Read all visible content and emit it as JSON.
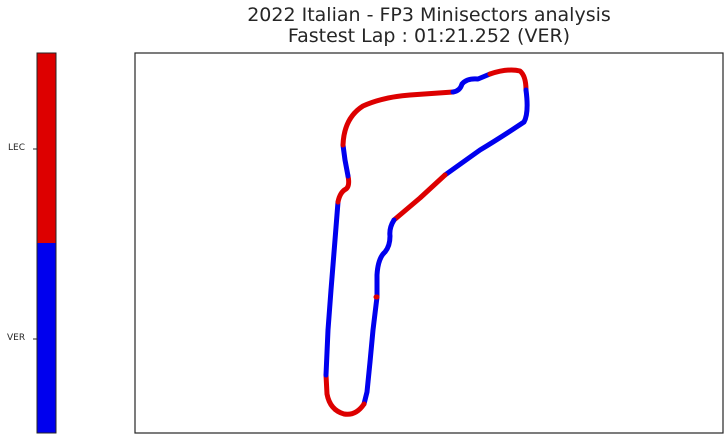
{
  "chart_data": {
    "type": "line",
    "title_line1": "2022 Italian - FP3 Minisectors analysis",
    "title_line2": "Fastest Lap : 01:21.252 (VER)",
    "xlabel": "",
    "ylabel": "",
    "grid": false,
    "axes_ticks_visible": false,
    "colorbar": {
      "placement": "left",
      "entries": [
        {
          "label": "LEC",
          "color": "#dd0000",
          "position": "top"
        },
        {
          "label": "VER",
          "color": "#0000ee",
          "position": "bottom"
        }
      ]
    },
    "track_minisectors_order": [
      "VER",
      "LEC",
      "VER",
      "LEC",
      "VER",
      "LEC",
      "VER",
      "LEC",
      "VER",
      "LEC",
      "VER",
      "LEC"
    ]
  }
}
